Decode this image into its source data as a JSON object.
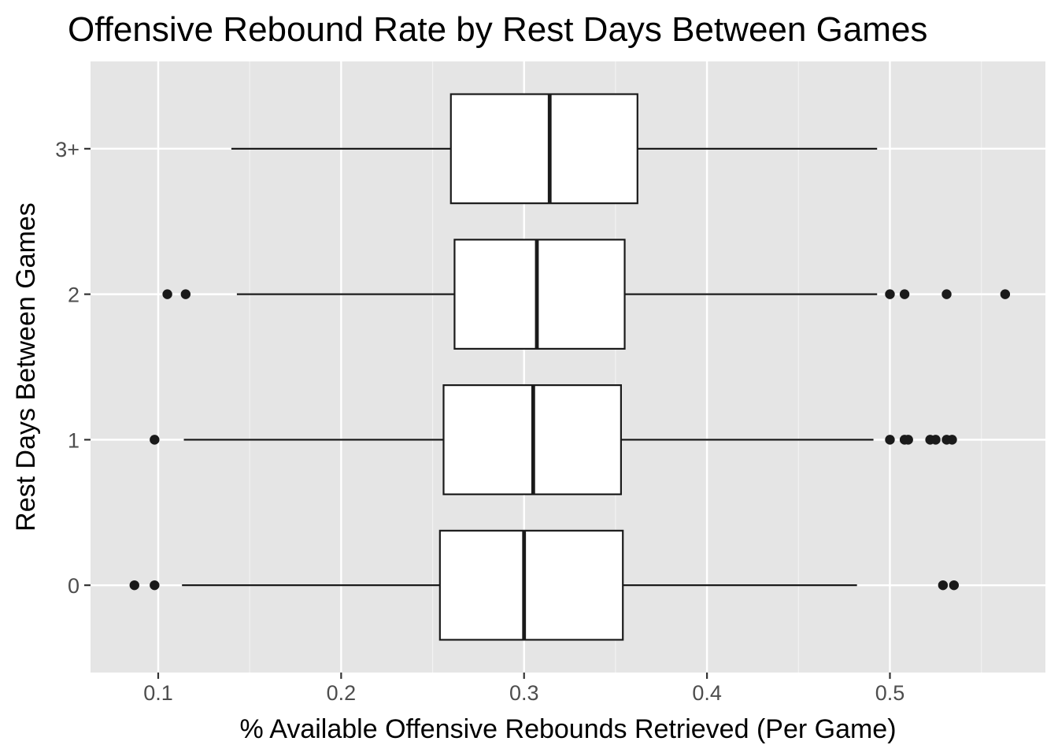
{
  "chart_data": {
    "type": "boxplot",
    "orientation": "horizontal",
    "title": "Offensive Rebound Rate by Rest Days Between Games",
    "xlabel": "% Available Offensive Rebounds Retrieved (Per Game)",
    "ylabel": "Rest Days Between Games",
    "xlim": [
      0.063,
      0.585
    ],
    "x_ticks": [
      0.1,
      0.2,
      0.3,
      0.4,
      0.5
    ],
    "x_tick_labels": [
      "0.1",
      "0.2",
      "0.3",
      "0.4",
      "0.5"
    ],
    "categories": [
      "0",
      "1",
      "2",
      "3+"
    ],
    "grid": true,
    "legend": "none",
    "colors": {
      "panel_background": "#e5e5e5",
      "grid_major": "#ffffff",
      "grid_minor": "#f2f2f2",
      "box_fill": "#ffffff",
      "box_line": "#1a1a1a",
      "outlier": "#1a1a1a",
      "tick_text": "#4d4d4d",
      "tick_mark": "#333333"
    },
    "boxes": [
      {
        "category": "0",
        "whisker_low": 0.113,
        "q1": 0.254,
        "median": 0.3,
        "q3": 0.354,
        "whisker_high": 0.482,
        "outliers": [
          0.087,
          0.098,
          0.529,
          0.535
        ]
      },
      {
        "category": "1",
        "whisker_low": 0.114,
        "q1": 0.256,
        "median": 0.305,
        "q3": 0.353,
        "whisker_high": 0.491,
        "outliers": [
          0.098,
          0.5,
          0.508,
          0.51,
          0.522,
          0.525,
          0.531,
          0.534
        ]
      },
      {
        "category": "2",
        "whisker_low": 0.143,
        "q1": 0.262,
        "median": 0.307,
        "q3": 0.355,
        "whisker_high": 0.493,
        "outliers": [
          0.105,
          0.115,
          0.5,
          0.508,
          0.531,
          0.563
        ]
      },
      {
        "category": "3+",
        "whisker_low": 0.14,
        "q1": 0.26,
        "median": 0.314,
        "q3": 0.362,
        "whisker_high": 0.493,
        "outliers": []
      }
    ]
  }
}
